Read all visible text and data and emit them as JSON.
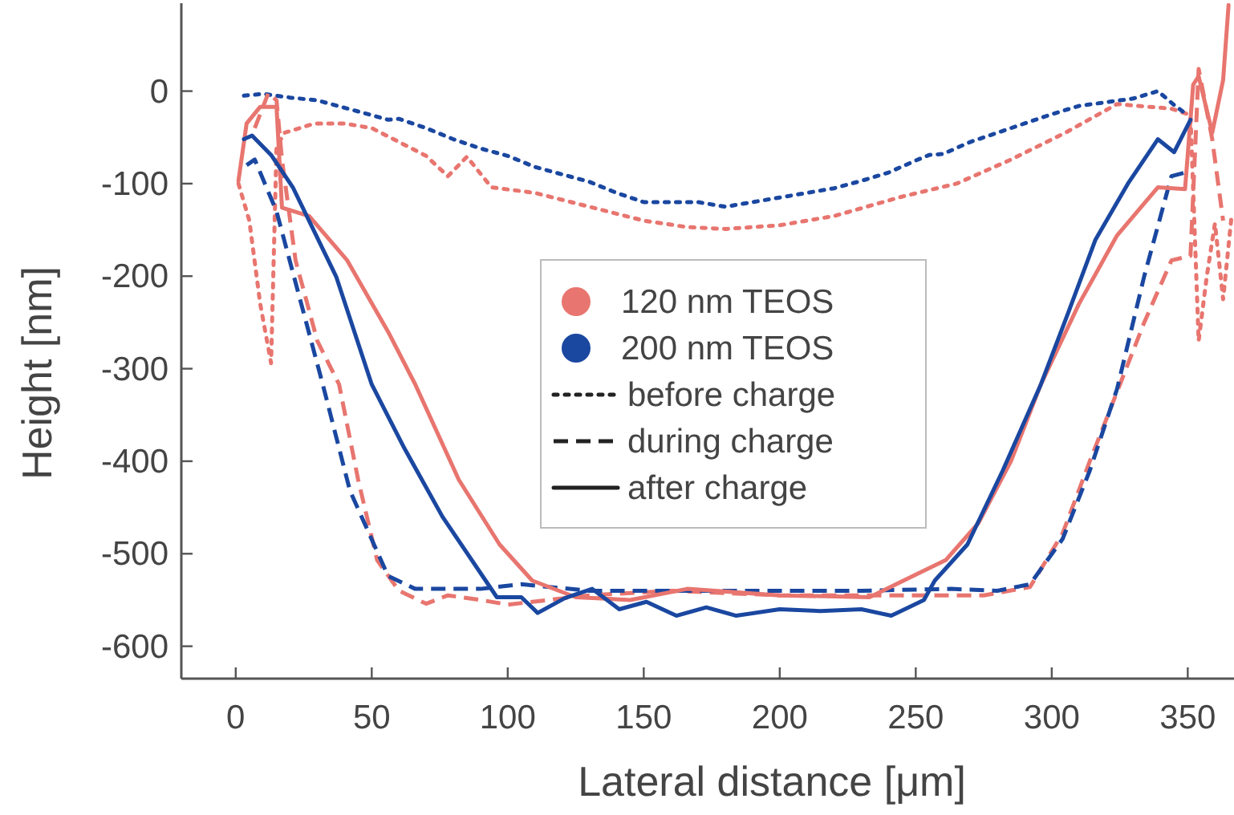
{
  "chart_data": {
    "type": "line",
    "xlabel": "Lateral distance [μm]",
    "ylabel": "Height [nm]",
    "xlim": [
      -20,
      367
    ],
    "ylim": [
      -635,
      95
    ],
    "xticks": [
      0,
      50,
      100,
      150,
      200,
      250,
      300,
      350
    ],
    "yticks": [
      -600,
      -500,
      -400,
      -300,
      -200,
      -100,
      0
    ],
    "grid": false,
    "legend": "center",
    "annotations": [
      "before charge",
      "during charge",
      "after charge"
    ],
    "series": [
      {
        "name": "120 nm TEOS",
        "color": "#e8756f",
        "line_style": "dotted",
        "x": [
          1,
          5,
          9,
          13,
          15,
          18,
          29,
          40,
          50,
          60,
          70,
          78,
          85,
          94,
          110,
          130,
          150,
          166,
          180,
          200,
          220,
          245,
          265,
          285,
          305,
          324,
          344,
          351,
          354,
          357,
          360,
          363,
          366
        ],
        "values": [
          -100,
          -140,
          -230,
          -294,
          -60,
          -45,
          -35,
          -35,
          -40,
          -55,
          -70,
          -92,
          -71,
          -104,
          -110,
          -125,
          -140,
          -147,
          -149,
          -145,
          -135,
          -114,
          -100,
          -74,
          -45,
          -14,
          -19,
          -26,
          -270,
          -200,
          -143,
          -225,
          -138
        ]
      },
      {
        "name": "200 nm TEOS",
        "color": "#1a47a0",
        "line_style": "dotted",
        "x": [
          3,
          10,
          20,
          30,
          40,
          50,
          56,
          60,
          70,
          80,
          90,
          100,
          110,
          120,
          130,
          140,
          150,
          160,
          170,
          180,
          190,
          200,
          210,
          220,
          230,
          240,
          250,
          255,
          260,
          270,
          280,
          290,
          300,
          310,
          320,
          330,
          339,
          345,
          350
        ],
        "values": [
          -5,
          -3,
          -7,
          -10,
          -18,
          -26,
          -31,
          -30,
          -40,
          -52,
          -62,
          -70,
          -82,
          -90,
          -98,
          -110,
          -120,
          -120,
          -120,
          -125,
          -120,
          -115,
          -110,
          -105,
          -97,
          -88,
          -75,
          -69,
          -68,
          -55,
          -45,
          -35,
          -25,
          -16,
          -12,
          -8,
          0,
          -15,
          -26
        ]
      },
      {
        "color": "#e8756f",
        "line_style": "dashed",
        "x": [
          7,
          12,
          15,
          17,
          22,
          30,
          38,
          45,
          52,
          60,
          70,
          78,
          90,
          100,
          130,
          160,
          200,
          230,
          255,
          275,
          292,
          304,
          314,
          324,
          334,
          344,
          351,
          354,
          359,
          363
        ],
        "values": [
          -40,
          -2,
          -10,
          -74,
          -183,
          -270,
          -317,
          -420,
          -507,
          -540,
          -554,
          -545,
          -550,
          -555,
          -545,
          -540,
          -545,
          -545,
          -545,
          -545,
          -536,
          -478,
          -400,
          -325,
          -250,
          -183,
          -178,
          24,
          -52,
          -140
        ]
      },
      {
        "color": "#1a47a0",
        "line_style": "dashed",
        "x": [
          4,
          7,
          15,
          23,
          32,
          42,
          56,
          66,
          90,
          105,
          130,
          160,
          200,
          230,
          263,
          280,
          292,
          304,
          314,
          324,
          334,
          344,
          349
        ],
        "values": [
          -80,
          -74,
          -130,
          -218,
          -317,
          -432,
          -524,
          -538,
          -538,
          -533,
          -540,
          -540,
          -540,
          -540,
          -538,
          -540,
          -533,
          -484,
          -410,
          -322,
          -200,
          -92,
          -88
        ]
      },
      {
        "color": "#e8756f",
        "line_style": "solid",
        "x": [
          1,
          4,
          9,
          15,
          17,
          27,
          41,
          56,
          66,
          82,
          97,
          109,
          125,
          145,
          166,
          200,
          233,
          249,
          261,
          273,
          285,
          296,
          310,
          324,
          339,
          349,
          352,
          354,
          359,
          363,
          365
        ],
        "values": [
          -97,
          -35,
          -17,
          -17,
          -126,
          -135,
          -183,
          -260,
          -317,
          -420,
          -490,
          -529,
          -547,
          -550,
          -538,
          -545,
          -547,
          -524,
          -507,
          -467,
          -400,
          -317,
          -230,
          -156,
          -104,
          -106,
          7,
          16,
          -45,
          12,
          93
        ]
      },
      {
        "color": "#1a47a0",
        "line_style": "solid",
        "x": [
          3,
          6,
          13,
          21,
          37,
          50,
          62,
          76,
          96,
          105,
          111,
          121,
          131,
          141,
          151,
          162,
          173,
          184,
          200,
          215,
          230,
          241,
          253,
          257,
          269,
          282,
          296,
          306,
          316,
          328,
          339,
          345,
          351
        ],
        "values": [
          -52,
          -48,
          -69,
          -104,
          -201,
          -317,
          -386,
          -460,
          -547,
          -547,
          -564,
          -548,
          -538,
          -560,
          -552,
          -567,
          -558,
          -567,
          -560,
          -562,
          -560,
          -567,
          -550,
          -529,
          -490,
          -410,
          -317,
          -240,
          -161,
          -100,
          -52,
          -66,
          -31
        ]
      }
    ]
  }
}
